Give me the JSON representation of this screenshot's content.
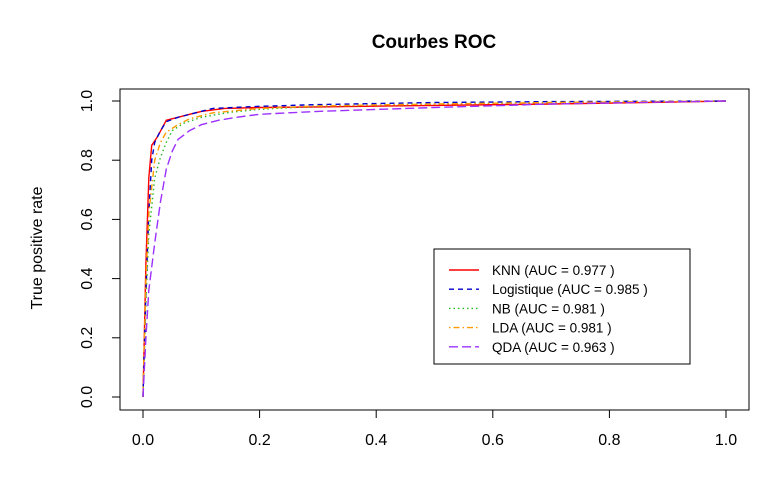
{
  "chart_data": {
    "type": "line",
    "title": "Courbes ROC",
    "xlabel": "",
    "ylabel": "True positive rate",
    "xlim": [
      0,
      1
    ],
    "ylim": [
      0,
      1
    ],
    "x_ticks": [
      "0.0",
      "0.2",
      "0.4",
      "0.6",
      "0.8",
      "1.0"
    ],
    "y_ticks": [
      "0.0",
      "0.2",
      "0.4",
      "0.6",
      "0.8",
      "1.0"
    ],
    "grid": false,
    "legend_position": "center-right",
    "series": [
      {
        "name": "KNN (AUC = 0.977 )",
        "color": "#ff0000",
        "dash": "solid",
        "points": [
          [
            0,
            0
          ],
          [
            0.005,
            0.45
          ],
          [
            0.01,
            0.74
          ],
          [
            0.015,
            0.85
          ],
          [
            0.025,
            0.88
          ],
          [
            0.04,
            0.935
          ],
          [
            0.06,
            0.945
          ],
          [
            0.08,
            0.955
          ],
          [
            0.1,
            0.965
          ],
          [
            0.14,
            0.975
          ],
          [
            0.2,
            0.978
          ],
          [
            0.3,
            0.98
          ],
          [
            0.5,
            0.985
          ],
          [
            0.7,
            0.99
          ],
          [
            0.9,
            0.996
          ],
          [
            1,
            1
          ]
        ]
      },
      {
        "name": "Logistique (AUC = 0.985 )",
        "color": "#0000cd",
        "dash": "dashed",
        "points": [
          [
            0,
            0
          ],
          [
            0.005,
            0.35
          ],
          [
            0.01,
            0.62
          ],
          [
            0.015,
            0.8
          ],
          [
            0.02,
            0.86
          ],
          [
            0.03,
            0.9
          ],
          [
            0.04,
            0.93
          ],
          [
            0.06,
            0.945
          ],
          [
            0.08,
            0.955
          ],
          [
            0.12,
            0.975
          ],
          [
            0.2,
            0.982
          ],
          [
            0.3,
            0.988
          ],
          [
            0.5,
            0.995
          ],
          [
            0.7,
            0.998
          ],
          [
            1,
            1
          ]
        ]
      },
      {
        "name": "NB (AUC = 0.981 )",
        "color": "#22bb22",
        "dash": "dotted",
        "points": [
          [
            0,
            0
          ],
          [
            0.005,
            0.32
          ],
          [
            0.01,
            0.55
          ],
          [
            0.02,
            0.74
          ],
          [
            0.03,
            0.81
          ],
          [
            0.04,
            0.86
          ],
          [
            0.05,
            0.9
          ],
          [
            0.07,
            0.925
          ],
          [
            0.1,
            0.945
          ],
          [
            0.15,
            0.962
          ],
          [
            0.2,
            0.972
          ],
          [
            0.3,
            0.982
          ],
          [
            0.5,
            0.99
          ],
          [
            0.7,
            0.995
          ],
          [
            1,
            1
          ]
        ]
      },
      {
        "name": "LDA (AUC = 0.981 )",
        "color": "#ff9900",
        "dash": "dotdash",
        "points": [
          [
            0,
            0
          ],
          [
            0.005,
            0.4
          ],
          [
            0.01,
            0.62
          ],
          [
            0.02,
            0.8
          ],
          [
            0.03,
            0.86
          ],
          [
            0.04,
            0.895
          ],
          [
            0.06,
            0.92
          ],
          [
            0.08,
            0.94
          ],
          [
            0.12,
            0.96
          ],
          [
            0.2,
            0.975
          ],
          [
            0.3,
            0.983
          ],
          [
            0.5,
            0.99
          ],
          [
            0.7,
            0.995
          ],
          [
            1,
            1
          ]
        ]
      },
      {
        "name": "QDA (AUC = 0.963 )",
        "color": "#9b30ff",
        "dash": "longdash",
        "points": [
          [
            0,
            0
          ],
          [
            0.005,
            0.2
          ],
          [
            0.01,
            0.36
          ],
          [
            0.02,
            0.52
          ],
          [
            0.03,
            0.66
          ],
          [
            0.04,
            0.77
          ],
          [
            0.05,
            0.83
          ],
          [
            0.06,
            0.87
          ],
          [
            0.08,
            0.9
          ],
          [
            0.1,
            0.92
          ],
          [
            0.13,
            0.935
          ],
          [
            0.16,
            0.945
          ],
          [
            0.2,
            0.955
          ],
          [
            0.25,
            0.96
          ],
          [
            0.3,
            0.965
          ],
          [
            0.5,
            0.978
          ],
          [
            0.7,
            0.99
          ],
          [
            0.9,
            0.997
          ],
          [
            1,
            1
          ]
        ]
      }
    ]
  }
}
